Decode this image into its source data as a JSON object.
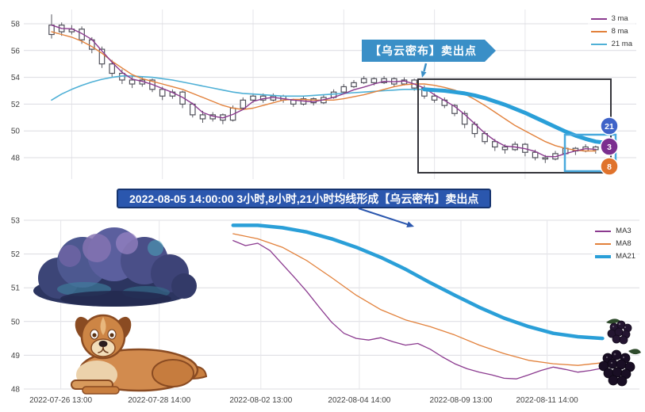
{
  "banner": {
    "text": "2022-08-05 14:00:00 3小时,8小时,21小时均线形成【乌云密布】卖出点",
    "bg": "#2b57ae",
    "border": "#16346f"
  },
  "top_chart": {
    "annotation_label": "【乌云密布】卖出点",
    "annotation_color": "#3a8fc7",
    "emphasis_color": "#2a9fd8",
    "badges": [
      {
        "label": "21",
        "color": "#3f63c8"
      },
      {
        "label": "3",
        "color": "#7b2f8f"
      },
      {
        "label": "8",
        "color": "#e0732c"
      }
    ]
  },
  "chart_data": [
    {
      "type": "candlestick",
      "title": "",
      "ylim": [
        47,
        58.5
      ],
      "y_ticks": [
        48,
        50,
        52,
        54,
        56,
        58
      ],
      "grid": true,
      "legend_position": "top-right",
      "candles_ohlc": [
        [
          57.2,
          58.7,
          56.9,
          57.9
        ],
        [
          57.9,
          58.1,
          57.1,
          57.4
        ],
        [
          57.4,
          57.9,
          57.2,
          57.6
        ],
        [
          57.6,
          57.8,
          56.5,
          56.8
        ],
        [
          56.8,
          57.0,
          55.8,
          56.1
        ],
        [
          56.1,
          56.3,
          54.7,
          55.0
        ],
        [
          55.0,
          55.3,
          54.0,
          54.3
        ],
        [
          54.3,
          54.6,
          53.5,
          53.8
        ],
        [
          53.8,
          54.1,
          53.2,
          53.5
        ],
        [
          53.5,
          54.0,
          53.3,
          53.8
        ],
        [
          53.8,
          53.9,
          52.9,
          53.1
        ],
        [
          53.1,
          53.3,
          52.3,
          52.6
        ],
        [
          52.6,
          53.1,
          52.4,
          52.9
        ],
        [
          52.9,
          53.0,
          51.7,
          52.0
        ],
        [
          52.0,
          52.1,
          51.0,
          51.2
        ],
        [
          51.2,
          51.5,
          50.6,
          50.9
        ],
        [
          50.9,
          51.4,
          50.7,
          51.2
        ],
        [
          51.2,
          51.3,
          50.5,
          50.8
        ],
        [
          50.8,
          51.9,
          50.7,
          51.7
        ],
        [
          51.7,
          52.5,
          51.6,
          52.3
        ],
        [
          52.3,
          52.8,
          52.1,
          52.6
        ],
        [
          52.6,
          52.8,
          52.1,
          52.3
        ],
        [
          52.3,
          52.8,
          52.2,
          52.6
        ],
        [
          52.6,
          52.7,
          52.1,
          52.3
        ],
        [
          52.3,
          52.4,
          51.8,
          52.0
        ],
        [
          52.0,
          52.6,
          51.9,
          52.4
        ],
        [
          52.4,
          52.5,
          51.9,
          52.1
        ],
        [
          52.1,
          52.7,
          52.0,
          52.5
        ],
        [
          52.5,
          53.1,
          52.4,
          52.9
        ],
        [
          52.9,
          53.5,
          52.8,
          53.3
        ],
        [
          53.3,
          53.8,
          53.2,
          53.6
        ],
        [
          53.6,
          54.1,
          53.5,
          53.9
        ],
        [
          53.9,
          54.0,
          53.4,
          53.6
        ],
        [
          53.6,
          54.1,
          53.5,
          53.9
        ],
        [
          53.9,
          54.0,
          53.3,
          53.5
        ],
        [
          53.5,
          54.0,
          53.4,
          53.8
        ],
        [
          53.8,
          53.9,
          53.0,
          53.2
        ],
        [
          53.2,
          53.4,
          52.4,
          52.6
        ],
        [
          52.6,
          52.8,
          52.1,
          52.3
        ],
        [
          52.3,
          52.5,
          51.7,
          51.9
        ],
        [
          51.9,
          52.0,
          51.1,
          51.3
        ],
        [
          51.3,
          51.5,
          50.2,
          50.5
        ],
        [
          50.5,
          50.7,
          49.5,
          49.8
        ],
        [
          49.8,
          50.0,
          49.0,
          49.2
        ],
        [
          49.2,
          49.4,
          48.5,
          48.8
        ],
        [
          48.8,
          49.0,
          48.3,
          48.6
        ],
        [
          48.6,
          49.2,
          48.5,
          49.0
        ],
        [
          49.0,
          49.1,
          48.1,
          48.4
        ],
        [
          48.4,
          48.6,
          47.8,
          48.0
        ],
        [
          48.0,
          48.2,
          47.6,
          47.9
        ],
        [
          47.9,
          48.5,
          47.8,
          48.3
        ],
        [
          48.3,
          48.9,
          48.2,
          48.7
        ],
        [
          48.7,
          48.8,
          48.2,
          48.5
        ],
        [
          48.5,
          49.0,
          48.4,
          48.8
        ],
        [
          48.8,
          48.9,
          48.3,
          48.6
        ]
      ],
      "series": [
        {
          "name": "3 ma",
          "color": "#8b3a8f",
          "values": [
            57.9,
            57.65,
            57.63,
            57.27,
            56.83,
            55.97,
            55.13,
            54.37,
            53.87,
            53.7,
            53.47,
            53.17,
            52.87,
            52.5,
            52.03,
            51.37,
            51.1,
            50.97,
            51.23,
            51.6,
            52.2,
            52.4,
            52.5,
            52.4,
            52.3,
            52.23,
            52.17,
            52.33,
            52.5,
            52.77,
            53.07,
            53.27,
            53.5,
            53.7,
            53.67,
            53.73,
            53.5,
            53.2,
            52.7,
            52.27,
            51.83,
            51.23,
            50.53,
            49.83,
            49.27,
            48.87,
            48.8,
            48.67,
            48.47,
            48.1,
            48.07,
            48.3,
            48.5,
            48.67,
            48.63
          ]
        },
        {
          "name": "8 ma",
          "color": "#e2813b",
          "values": [
            57.4,
            57.2,
            57.0,
            56.7,
            56.3,
            55.8,
            55.2,
            54.7,
            54.2,
            53.9,
            53.7,
            53.5,
            53.3,
            53.1,
            52.8,
            52.5,
            52.2,
            51.9,
            51.7,
            51.6,
            51.7,
            51.9,
            52.1,
            52.3,
            52.35,
            52.35,
            52.3,
            52.3,
            52.3,
            52.4,
            52.55,
            52.7,
            52.9,
            53.1,
            53.3,
            53.45,
            53.5,
            53.5,
            53.4,
            53.25,
            53.05,
            52.75,
            52.35,
            51.9,
            51.4,
            50.9,
            50.4,
            50.0,
            49.6,
            49.2,
            48.9,
            48.7,
            48.55,
            48.5,
            48.5
          ]
        },
        {
          "name": "21 ma",
          "color": "#4fb0d6",
          "values": [
            52.3,
            52.75,
            53.1,
            53.4,
            53.65,
            53.85,
            54.0,
            54.1,
            54.1,
            54.05,
            54.0,
            53.9,
            53.8,
            53.65,
            53.5,
            53.35,
            53.2,
            53.05,
            52.9,
            52.8,
            52.75,
            52.7,
            52.65,
            52.6,
            52.6,
            52.6,
            52.65,
            52.7,
            52.75,
            52.8,
            52.85,
            52.9,
            52.95,
            53.0,
            53.05,
            53.1,
            53.1,
            53.1,
            53.05,
            53.0,
            52.9,
            52.8,
            52.65,
            52.45,
            52.2,
            51.95,
            51.65,
            51.35,
            51.0,
            50.65,
            50.3,
            49.95,
            49.65,
            49.4,
            49.2
          ]
        }
      ]
    },
    {
      "type": "line",
      "title": "",
      "ylim": [
        48,
        53
      ],
      "y_ticks": [
        53,
        52,
        51,
        50,
        49,
        48
      ],
      "grid": true,
      "legend_position": "top-right",
      "x_unit": "percent-of-plot-width",
      "x_ticks": [
        {
          "label": "2022-07-26 13:00",
          "x": 6
        },
        {
          "label": "2022-07-28 14:00",
          "x": 22
        },
        {
          "label": "2022-08-02 13:00",
          "x": 38.5
        },
        {
          "label": "2022-08-04 14:00",
          "x": 54.5
        },
        {
          "label": "2022-08-09 13:00",
          "x": 71
        },
        {
          "label": "2022-08-11 14:00",
          "x": 85
        }
      ],
      "series": [
        {
          "name": "MA3",
          "color": "#8b3a8f",
          "width": 1.3,
          "points": [
            [
              34,
              52.4
            ],
            [
              36,
              52.25
            ],
            [
              38,
              52.32
            ],
            [
              40,
              52.1
            ],
            [
              42,
              51.7
            ],
            [
              44,
              51.3
            ],
            [
              46,
              50.88
            ],
            [
              48,
              50.42
            ],
            [
              50,
              49.98
            ],
            [
              52,
              49.65
            ],
            [
              54,
              49.5
            ],
            [
              56,
              49.45
            ],
            [
              58,
              49.52
            ],
            [
              60,
              49.4
            ],
            [
              62,
              49.3
            ],
            [
              64,
              49.35
            ],
            [
              66,
              49.18
            ],
            [
              68,
              48.95
            ],
            [
              70,
              48.75
            ],
            [
              72,
              48.6
            ],
            [
              74,
              48.5
            ],
            [
              76,
              48.42
            ],
            [
              78,
              48.32
            ],
            [
              80,
              48.3
            ],
            [
              82,
              48.42
            ],
            [
              84,
              48.55
            ],
            [
              86,
              48.65
            ],
            [
              88,
              48.58
            ],
            [
              90,
              48.5
            ],
            [
              92,
              48.55
            ],
            [
              94,
              48.62
            ]
          ]
        },
        {
          "name": "MA8",
          "color": "#e2813b",
          "width": 1.3,
          "points": [
            [
              34,
              52.6
            ],
            [
              38,
              52.45
            ],
            [
              42,
              52.2
            ],
            [
              46,
              51.8
            ],
            [
              50,
              51.3
            ],
            [
              54,
              50.78
            ],
            [
              58,
              50.35
            ],
            [
              62,
              50.05
            ],
            [
              66,
              49.85
            ],
            [
              70,
              49.6
            ],
            [
              74,
              49.3
            ],
            [
              78,
              49.05
            ],
            [
              82,
              48.85
            ],
            [
              86,
              48.75
            ],
            [
              90,
              48.7
            ],
            [
              94,
              48.78
            ]
          ]
        },
        {
          "name": "MA21",
          "color": "#2a9fd8",
          "width": 4.5,
          "points": [
            [
              34,
              52.85
            ],
            [
              38,
              52.85
            ],
            [
              42,
              52.78
            ],
            [
              46,
              52.65
            ],
            [
              50,
              52.45
            ],
            [
              54,
              52.2
            ],
            [
              58,
              51.9
            ],
            [
              62,
              51.55
            ],
            [
              66,
              51.15
            ],
            [
              70,
              50.78
            ],
            [
              74,
              50.42
            ],
            [
              78,
              50.1
            ],
            [
              82,
              49.85
            ],
            [
              86,
              49.65
            ],
            [
              90,
              49.55
            ],
            [
              94,
              49.5
            ]
          ]
        }
      ]
    }
  ]
}
